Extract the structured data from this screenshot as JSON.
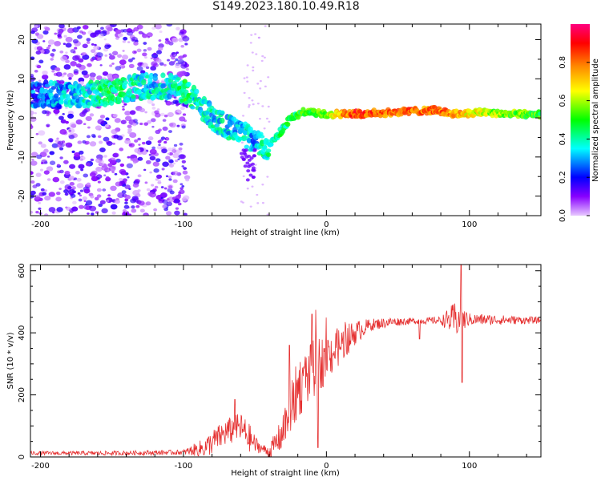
{
  "title": "S149.2023.180.10.49.R18",
  "chart_data": [
    {
      "type": "heatmap",
      "xlabel": "Height of straight line (km)",
      "ylabel": "Frequency (Hz)",
      "xlim": [
        -207,
        150
      ],
      "ylim": [
        -25,
        24
      ],
      "xticks": [
        -200,
        -100,
        0,
        100
      ],
      "yticks": [
        -20,
        -10,
        0,
        10,
        20
      ],
      "colorbar": {
        "label": "Normalized spectral amplitude",
        "range": [
          0,
          1
        ],
        "ticks": [
          0.0,
          0.2,
          0.4,
          0.6,
          0.8
        ],
        "colormap": [
          "#e8c8ff",
          "#8800ff",
          "#0000ff",
          "#00ffff",
          "#00ff00",
          "#ffff00",
          "#ff8800",
          "#ff0000",
          "#ff0080"
        ]
      },
      "ridge": [
        {
          "x": -200,
          "y": 6,
          "a": 0.25
        },
        {
          "x": -170,
          "y": 6,
          "a": 0.35
        },
        {
          "x": -150,
          "y": 6.5,
          "a": 0.45
        },
        {
          "x": -130,
          "y": 8,
          "a": 0.35
        },
        {
          "x": -110,
          "y": 8,
          "a": 0.35
        },
        {
          "x": -100,
          "y": 7,
          "a": 0.45
        },
        {
          "x": -90,
          "y": 4,
          "a": 0.35
        },
        {
          "x": -80,
          "y": 0,
          "a": 0.35
        },
        {
          "x": -70,
          "y": -2,
          "a": 0.35
        },
        {
          "x": -60,
          "y": -4,
          "a": 0.35
        },
        {
          "x": -50,
          "y": -6,
          "a": 0.3
        },
        {
          "x": -42,
          "y": -8,
          "a": 0.4
        },
        {
          "x": -35,
          "y": -5,
          "a": 0.4
        },
        {
          "x": -25,
          "y": 0,
          "a": 0.45
        },
        {
          "x": -15,
          "y": 1.5,
          "a": 0.5
        },
        {
          "x": 0,
          "y": 1,
          "a": 0.6
        },
        {
          "x": 20,
          "y": 1,
          "a": 0.85
        },
        {
          "x": 50,
          "y": 1.5,
          "a": 0.8
        },
        {
          "x": 75,
          "y": 2,
          "a": 0.8
        },
        {
          "x": 90,
          "y": 1,
          "a": 0.75
        },
        {
          "x": 110,
          "y": 1.5,
          "a": 0.6
        },
        {
          "x": 130,
          "y": 1,
          "a": 0.55
        },
        {
          "x": 150,
          "y": 1,
          "a": 0.5
        }
      ]
    },
    {
      "type": "line",
      "xlabel": "Height of straight line (km)",
      "ylabel": "SNR (10 * v/v)",
      "xlim": [
        -207,
        150
      ],
      "ylim": [
        0,
        620
      ],
      "xticks": [
        -200,
        -100,
        0,
        100
      ],
      "yticks": [
        0,
        200,
        400,
        600
      ],
      "color": "#e53030",
      "trend": [
        {
          "x": -207,
          "y": 12
        },
        {
          "x": -150,
          "y": 12
        },
        {
          "x": -100,
          "y": 15
        },
        {
          "x": -85,
          "y": 30
        },
        {
          "x": -70,
          "y": 80
        },
        {
          "x": -60,
          "y": 95
        },
        {
          "x": -50,
          "y": 40
        },
        {
          "x": -40,
          "y": 15
        },
        {
          "x": -30,
          "y": 80
        },
        {
          "x": -20,
          "y": 220
        },
        {
          "x": -10,
          "y": 280
        },
        {
          "x": 0,
          "y": 320
        },
        {
          "x": 10,
          "y": 360
        },
        {
          "x": 20,
          "y": 400
        },
        {
          "x": 30,
          "y": 425
        },
        {
          "x": 45,
          "y": 435
        },
        {
          "x": 60,
          "y": 438
        },
        {
          "x": 80,
          "y": 440
        },
        {
          "x": 100,
          "y": 443
        },
        {
          "x": 150,
          "y": 440
        }
      ],
      "noise": [
        {
          "x": -207,
          "y": 6
        },
        {
          "x": -100,
          "y": 8
        },
        {
          "x": -80,
          "y": 40
        },
        {
          "x": -55,
          "y": 50
        },
        {
          "x": -45,
          "y": 12
        },
        {
          "x": -35,
          "y": 40
        },
        {
          "x": -20,
          "y": 100
        },
        {
          "x": -5,
          "y": 90
        },
        {
          "x": 10,
          "y": 60
        },
        {
          "x": 30,
          "y": 20
        },
        {
          "x": 60,
          "y": 10
        },
        {
          "x": 80,
          "y": 12
        },
        {
          "x": 90,
          "y": 60
        },
        {
          "x": 100,
          "y": 20
        },
        {
          "x": 150,
          "y": 10
        }
      ],
      "spikes": [
        {
          "x": -64,
          "y": 185
        },
        {
          "x": -26,
          "y": 360
        },
        {
          "x": -10,
          "y": 460
        },
        {
          "x": -6,
          "y": 30
        },
        {
          "x": 65,
          "y": 380
        },
        {
          "x": 94,
          "y": 620
        },
        {
          "x": 95,
          "y": 240
        }
      ]
    }
  ]
}
